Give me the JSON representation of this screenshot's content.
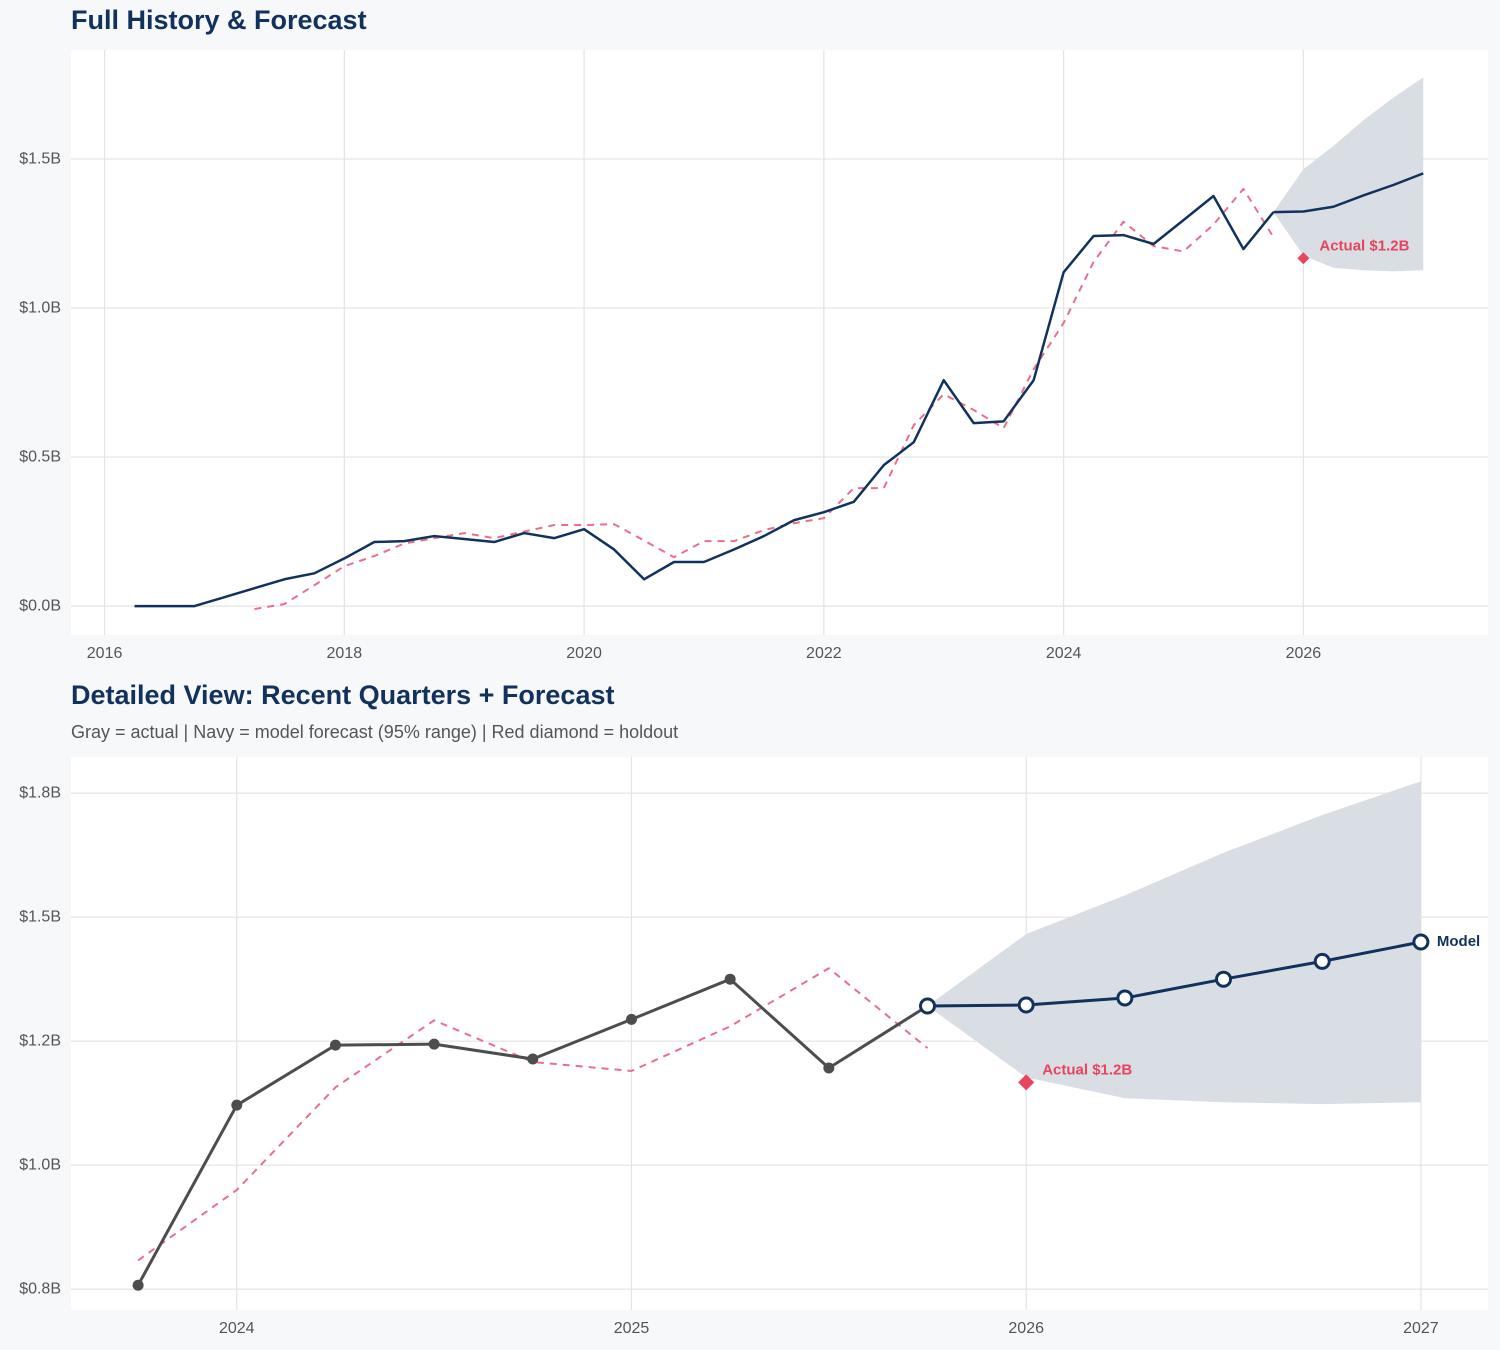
{
  "chart_data": [
    {
      "type": "line",
      "title": "Full History & Forecast",
      "xlim": [
        2015.72,
        2027.54
      ],
      "ylim": [
        -0.097,
        1.866
      ],
      "xticks": [
        2016,
        2018,
        2020,
        2022,
        2024,
        2026
      ],
      "yticks": [
        {
          "value": 0,
          "label": "$0.0B"
        },
        {
          "value": 0.5,
          "label": "$0.5B"
        },
        {
          "value": 1.0,
          "label": "$1.0B"
        },
        {
          "value": 1.5,
          "label": "$1.5B"
        }
      ],
      "grid": true,
      "band": {
        "color": "#d9dee5",
        "x": [
          2025.75,
          2026,
          2026.25,
          2026.5,
          2026.75,
          2027
        ],
        "lower": [
          1.322,
          1.177,
          1.135,
          1.127,
          1.123,
          1.127
        ],
        "upper": [
          1.322,
          1.466,
          1.544,
          1.63,
          1.706,
          1.774
        ]
      },
      "series": [
        {
          "color": "#e8708a",
          "dash": true,
          "width": 2,
          "x": [
            2017.25,
            2017.5,
            2017.75,
            2018,
            2018.25,
            2018.5,
            2018.75,
            2019,
            2019.25,
            2019.5,
            2019.75,
            2020,
            2020.25,
            2020.5,
            2020.75,
            2021,
            2021.25,
            2021.5,
            2021.75,
            2022,
            2022.25,
            2022.5,
            2022.75,
            2023,
            2023.25,
            2023.5,
            2023.75,
            2024,
            2024.25,
            2024.5,
            2024.75,
            2025,
            2025.25,
            2025.5,
            2025.75
          ],
          "values": [
            -0.01,
            0.007,
            0.07,
            0.134,
            0.168,
            0.21,
            0.228,
            0.245,
            0.228,
            0.25,
            0.272,
            0.272,
            0.275,
            0.22,
            0.164,
            0.218,
            0.218,
            0.255,
            0.278,
            0.295,
            0.396,
            0.396,
            0.607,
            0.711,
            0.658,
            0.597,
            0.795,
            0.95,
            1.155,
            1.29,
            1.208,
            1.19,
            1.28,
            1.4,
            1.238
          ]
        },
        {
          "color": "#12325e",
          "width": 2.5,
          "x": [
            2016.25,
            2016.5,
            2016.75,
            2017,
            2017.25,
            2017.5,
            2017.75,
            2018,
            2018.25,
            2018.5,
            2018.75,
            2019,
            2019.25,
            2019.5,
            2019.75,
            2020,
            2020.25,
            2020.5,
            2020.75,
            2021,
            2021.25,
            2021.5,
            2021.75,
            2022,
            2022.25,
            2022.5,
            2022.75,
            2023,
            2023.25,
            2023.5,
            2023.75,
            2024,
            2024.25,
            2024.5,
            2024.75,
            2025,
            2025.25,
            2025.5,
            2025.75
          ],
          "values": [
            0,
            0,
            0,
            0.03,
            0.06,
            0.09,
            0.11,
            0.16,
            0.215,
            0.218,
            0.235,
            0.225,
            0.215,
            0.245,
            0.228,
            0.258,
            0.19,
            0.09,
            0.148,
            0.148,
            0.19,
            0.235,
            0.288,
            0.315,
            0.35,
            0.473,
            0.55,
            0.758,
            0.614,
            0.62,
            0.758,
            1.12,
            1.242,
            1.245,
            1.215,
            1.295,
            1.376,
            1.198,
            1.322
          ]
        },
        {
          "color": "#12325e",
          "width": 2.5,
          "x": [
            2025.75,
            2026,
            2026.25,
            2026.5,
            2026.75,
            2027
          ],
          "values": [
            1.322,
            1.324,
            1.34,
            1.378,
            1.413,
            1.452
          ]
        },
        {
          "color": "#e8445e",
          "marker": "diamond",
          "size": 6,
          "label": "Actual $1.2B",
          "x": [
            2026
          ],
          "values": [
            1.167
          ]
        }
      ]
    },
    {
      "type": "line",
      "title": "Detailed View: Recent Quarters + Forecast",
      "subtitle": "Gray = actual  |  Navy = model forecast (95% range)  |  Red diamond = holdout",
      "xlim": [
        2023.58,
        2027.17
      ],
      "ylim": [
        0.708,
        1.823
      ],
      "xticks": [
        2024,
        2025,
        2026,
        2027
      ],
      "yticks": [
        {
          "value": 0.75,
          "label": "$0.8B"
        },
        {
          "value": 1.0,
          "label": "$1.0B"
        },
        {
          "value": 1.25,
          "label": "$1.2B"
        },
        {
          "value": 1.5,
          "label": "$1.5B"
        },
        {
          "value": 1.75,
          "label": "$1.8B"
        }
      ],
      "grid": true,
      "band": {
        "color": "#d9dee5",
        "x": [
          2025.75,
          2026,
          2026.25,
          2026.5,
          2026.75,
          2027
        ],
        "lower": [
          1.321,
          1.177,
          1.135,
          1.127,
          1.123,
          1.127
        ],
        "upper": [
          1.321,
          1.466,
          1.544,
          1.63,
          1.706,
          1.774
        ]
      },
      "series": [
        {
          "color": "#e8708a",
          "dash": true,
          "width": 2,
          "x": [
            2023.75,
            2024,
            2024.25,
            2024.5,
            2024.75,
            2025,
            2025.25,
            2025.5,
            2025.75
          ],
          "values": [
            0.808,
            0.95,
            1.157,
            1.292,
            1.208,
            1.19,
            1.28,
            1.397,
            1.236
          ]
        },
        {
          "color": "#4d4d4d",
          "width": 3,
          "marker": "dot",
          "size": 5.5,
          "x": [
            2023.75,
            2024,
            2024.25,
            2024.5,
            2024.75,
            2025,
            2025.25,
            2025.5,
            2025.75
          ],
          "values": [
            0.758,
            1.121,
            1.242,
            1.244,
            1.214,
            1.294,
            1.375,
            1.196,
            1.321
          ]
        },
        {
          "color": "#12325e",
          "width": 3,
          "marker": "open",
          "size": 7,
          "label": "Model",
          "x": [
            2025.75,
            2026,
            2026.25,
            2026.5,
            2026.75,
            2027
          ],
          "values": [
            1.321,
            1.323,
            1.337,
            1.375,
            1.411,
            1.45
          ]
        },
        {
          "color": "#e8445e",
          "marker": "diamond",
          "size": 8,
          "label": "Actual $1.2B",
          "x": [
            2026
          ],
          "values": [
            1.167
          ]
        }
      ]
    }
  ]
}
